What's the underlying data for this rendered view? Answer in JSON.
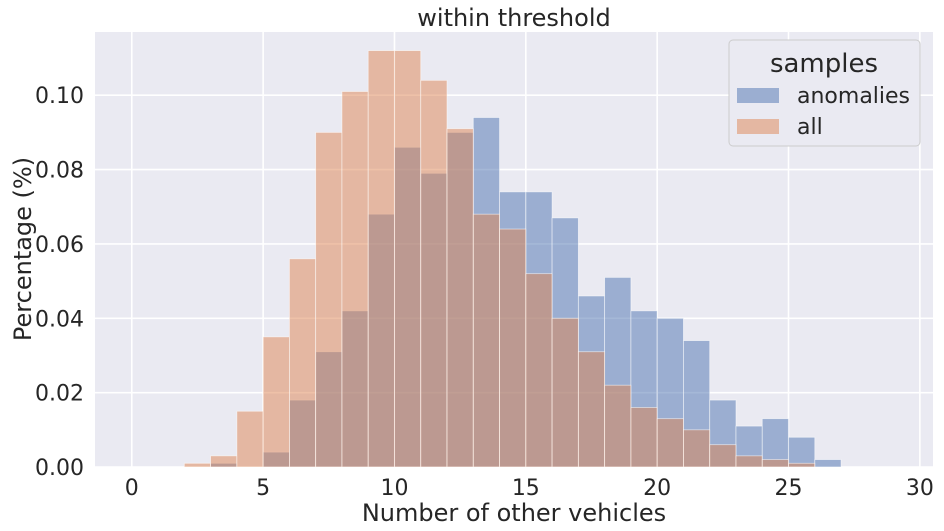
{
  "chart_data": {
    "type": "bar",
    "title": "within threshold",
    "xlabel": "Number of other vehicles",
    "ylabel": "Percentage (%)",
    "xlim": [
      -1.4,
      30.5
    ],
    "ylim": [
      0,
      0.117
    ],
    "xticks": [
      0,
      5,
      10,
      15,
      20,
      25,
      30
    ],
    "yticks": [
      0.0,
      0.02,
      0.04,
      0.06,
      0.08,
      0.1
    ],
    "ytick_labels": [
      "0.00",
      "0.02",
      "0.04",
      "0.06",
      "0.08",
      "0.10"
    ],
    "grid": true,
    "legend": {
      "title": "samples",
      "placement": "top-right"
    },
    "bins": [
      1,
      2,
      3,
      4,
      5,
      6,
      7,
      8,
      9,
      10,
      11,
      12,
      13,
      14,
      15,
      16,
      17,
      18,
      19,
      20,
      21,
      22,
      23,
      24,
      25,
      26
    ],
    "series": [
      {
        "name": "anomalies",
        "color": "#4c72b0",
        "values": [
          0.0,
          0.0,
          0.001,
          0.0,
          0.004,
          0.018,
          0.031,
          0.042,
          0.068,
          0.086,
          0.079,
          0.09,
          0.094,
          0.074,
          0.074,
          0.067,
          0.046,
          0.051,
          0.042,
          0.04,
          0.034,
          0.018,
          0.011,
          0.013,
          0.008,
          0.002
        ]
      },
      {
        "name": "all",
        "color": "#dd8452",
        "values": [
          0.0,
          0.001,
          0.003,
          0.015,
          0.035,
          0.056,
          0.09,
          0.101,
          0.112,
          0.112,
          0.104,
          0.091,
          0.068,
          0.064,
          0.052,
          0.04,
          0.031,
          0.022,
          0.016,
          0.013,
          0.01,
          0.006,
          0.003,
          0.002,
          0.001,
          0.0
        ]
      }
    ]
  }
}
